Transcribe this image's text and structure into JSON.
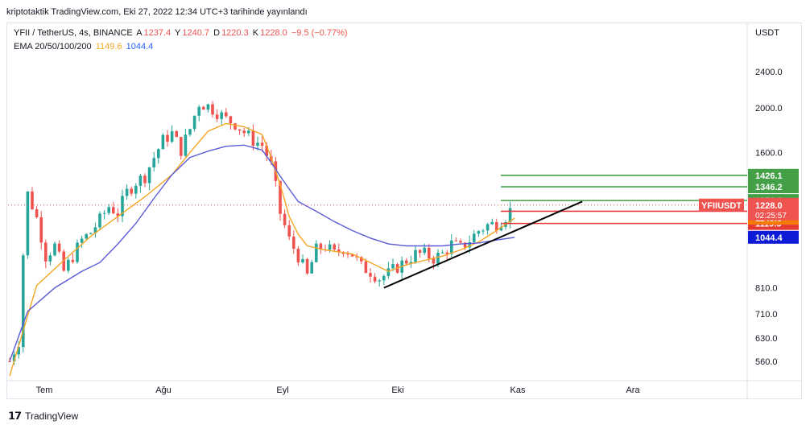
{
  "header": {
    "publish_line": "kriptotaktik TradingView.com, Eki 27, 2022 12:34 UTC+3 tarihinde yayınlandı"
  },
  "legend": {
    "symbol": "YFII / TetherUS, 4s, BINANCE",
    "o_label": "A",
    "o_value": "1237.4",
    "h_label": "Y",
    "h_value": "1240.7",
    "l_label": "D",
    "l_value": "1220.3",
    "c_label": "K",
    "c_value": "1228.0",
    "change": "−9.5 (−0.77%)",
    "ema_label": "EMA 20/50/100/200",
    "ema_a": "1149.6",
    "ema_b": "1044.4"
  },
  "axis": {
    "currency": "USDT"
  },
  "footer": {
    "brand": "TradingView"
  },
  "colors": {
    "up": "#26a69a",
    "down": "#ef5350",
    "ema_fast": "#f5a623",
    "ema_slow": "#5b5bd6",
    "green_level": "#43a047",
    "red_level": "#e53935",
    "trend": "#000000"
  },
  "chart_data": {
    "type": "candlestick",
    "symbol": "YFIIUSDT",
    "scale": "log",
    "ylim": [
      510,
      2700
    ],
    "y_ticks": [
      2400,
      2000,
      1600,
      810,
      710,
      630,
      560
    ],
    "x_ticks": [
      "Tem",
      "Ağu",
      "Eyl",
      "Eki",
      "Kas",
      "Ara"
    ],
    "last_price": 1228.0,
    "countdown": "02:25:57",
    "price_label": "YFIIUSDT",
    "price_trace": [
      [
        0,
        560
      ],
      [
        2,
        620
      ],
      [
        4,
        1300
      ],
      [
        6,
        1150
      ],
      [
        8,
        950
      ],
      [
        10,
        1000
      ],
      [
        12,
        880
      ],
      [
        14,
        950
      ],
      [
        16,
        1030
      ],
      [
        18,
        1070
      ],
      [
        20,
        1140
      ],
      [
        22,
        1220
      ],
      [
        24,
        1180
      ],
      [
        26,
        1310
      ],
      [
        28,
        1380
      ],
      [
        30,
        1420
      ],
      [
        32,
        1560
      ],
      [
        34,
        1700
      ],
      [
        36,
        1760
      ],
      [
        38,
        1620
      ],
      [
        40,
        1800
      ],
      [
        42,
        2050
      ],
      [
        44,
        2020
      ],
      [
        46,
        1960
      ],
      [
        48,
        1890
      ],
      [
        50,
        1850
      ],
      [
        52,
        1770
      ],
      [
        54,
        1700
      ],
      [
        56,
        1660
      ],
      [
        58,
        1500
      ],
      [
        60,
        1180
      ],
      [
        62,
        1030
      ],
      [
        64,
        950
      ],
      [
        66,
        860
      ],
      [
        68,
        980
      ],
      [
        70,
        1000
      ],
      [
        72,
        960
      ],
      [
        74,
        990
      ],
      [
        76,
        960
      ],
      [
        78,
        900
      ],
      [
        80,
        880
      ],
      [
        82,
        850
      ],
      [
        84,
        870
      ],
      [
        86,
        900
      ],
      [
        88,
        930
      ],
      [
        90,
        960
      ],
      [
        92,
        960
      ],
      [
        94,
        940
      ],
      [
        96,
        960
      ],
      [
        98,
        1010
      ],
      [
        100,
        990
      ],
      [
        102,
        1030
      ],
      [
        104,
        1080
      ],
      [
        106,
        1110
      ],
      [
        108,
        1120
      ],
      [
        110,
        1160
      ],
      [
        112,
        1230
      ]
    ],
    "series": [
      {
        "name": "EMA 20",
        "values": [
          [
            0,
            520
          ],
          [
            6,
            820
          ],
          [
            12,
            930
          ],
          [
            18,
            1050
          ],
          [
            24,
            1160
          ],
          [
            30,
            1280
          ],
          [
            36,
            1430
          ],
          [
            40,
            1600
          ],
          [
            44,
            1780
          ],
          [
            48,
            1850
          ],
          [
            52,
            1820
          ],
          [
            56,
            1750
          ],
          [
            58,
            1560
          ],
          [
            60,
            1360
          ],
          [
            62,
            1160
          ],
          [
            64,
            1060
          ],
          [
            66,
            1000
          ],
          [
            70,
            980
          ],
          [
            76,
            960
          ],
          [
            80,
            920
          ],
          [
            84,
            880
          ],
          [
            88,
            910
          ],
          [
            92,
            930
          ],
          [
            96,
            950
          ],
          [
            100,
            980
          ],
          [
            104,
            1020
          ],
          [
            108,
            1080
          ],
          [
            112,
            1150
          ]
        ]
      },
      {
        "name": "EMA 200",
        "values": [
          [
            0,
            560
          ],
          [
            4,
            720
          ],
          [
            10,
            810
          ],
          [
            16,
            880
          ],
          [
            20,
            920
          ],
          [
            24,
            1010
          ],
          [
            28,
            1120
          ],
          [
            32,
            1270
          ],
          [
            36,
            1430
          ],
          [
            40,
            1560
          ],
          [
            44,
            1610
          ],
          [
            48,
            1650
          ],
          [
            52,
            1660
          ],
          [
            56,
            1620
          ],
          [
            58,
            1520
          ],
          [
            60,
            1420
          ],
          [
            62,
            1330
          ],
          [
            64,
            1250
          ],
          [
            68,
            1190
          ],
          [
            72,
            1130
          ],
          [
            76,
            1080
          ],
          [
            80,
            1040
          ],
          [
            84,
            1010
          ],
          [
            88,
            1000
          ],
          [
            92,
            1000
          ],
          [
            96,
            1000
          ],
          [
            100,
            1010
          ],
          [
            104,
            1015
          ],
          [
            108,
            1030
          ],
          [
            112,
            1044
          ]
        ]
      }
    ],
    "levels": [
      {
        "label": "1426.1",
        "value": 1426.1,
        "kind": "resistance"
      },
      {
        "label": "1346.2",
        "value": 1346.2,
        "kind": "resistance"
      },
      {
        "label": "1256.3",
        "value": 1256.3,
        "kind": "resistance"
      },
      {
        "label": "1190.5",
        "value": 1190.5,
        "kind": "support"
      },
      {
        "label": "1119.5",
        "value": 1119.5,
        "kind": "support"
      }
    ],
    "ema_badges": [
      {
        "label": "1149.6",
        "value": 1149.6,
        "color": "#f57c00"
      },
      {
        "label": "1044.4",
        "value": 1044.4,
        "color": "#0d1bd6"
      }
    ],
    "trendline": [
      [
        83,
        810
      ],
      [
        127,
        1250
      ]
    ]
  }
}
